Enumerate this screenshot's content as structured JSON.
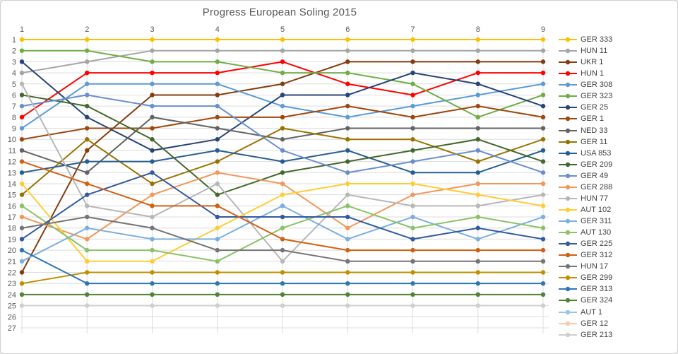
{
  "window": {
    "background": "#FFFFFF",
    "border_color": "#D0D0D0"
  },
  "chart_data": {
    "type": "line",
    "title": "Progress European Soling 2015",
    "title_color": "#595959",
    "x_ticks": [
      1,
      2,
      3,
      4,
      5,
      6,
      7,
      8,
      9
    ],
    "x_axis_position": "top",
    "y_ticks": [
      1,
      2,
      3,
      4,
      5,
      6,
      7,
      8,
      9,
      10,
      11,
      12,
      13,
      14,
      15,
      16,
      17,
      18,
      19,
      20,
      21,
      22,
      23,
      24,
      25,
      26,
      27
    ],
    "y_axis": {
      "min": 1,
      "max": 27,
      "reversed": true,
      "label_color": "#595959"
    },
    "grid": true,
    "gridline_color": "#DCDCDC",
    "legend_position": "right",
    "xlabel": "",
    "ylabel": "",
    "series": [
      {
        "name": "GER 333",
        "color": "#FFC000",
        "values": [
          1,
          1,
          1,
          1,
          1,
          1,
          1,
          1,
          1
        ]
      },
      {
        "name": "HUN 11",
        "color": "#A5A5A5",
        "values": [
          4,
          3,
          2,
          2,
          2,
          2,
          2,
          2,
          2
        ]
      },
      {
        "name": "UKR 1",
        "color": "#843C0C",
        "values": [
          22,
          11,
          6,
          6,
          5,
          3,
          3,
          3,
          3
        ]
      },
      {
        "name": "HUN 1",
        "color": "#FF0000",
        "values": [
          8,
          4,
          4,
          4,
          3,
          5,
          6,
          4,
          4
        ]
      },
      {
        "name": "GER 308",
        "color": "#5B9BD5",
        "values": [
          9,
          5,
          5,
          5,
          7,
          8,
          7,
          6,
          5
        ]
      },
      {
        "name": "GER 323",
        "color": "#70AD47",
        "values": [
          2,
          2,
          3,
          3,
          4,
          4,
          5,
          8,
          6
        ]
      },
      {
        "name": "GER 25",
        "color": "#264478",
        "values": [
          3,
          8,
          11,
          10,
          6,
          6,
          4,
          5,
          7
        ]
      },
      {
        "name": "GER 1",
        "color": "#9E480E",
        "values": [
          10,
          9,
          9,
          8,
          8,
          7,
          8,
          7,
          8
        ]
      },
      {
        "name": "NED 33",
        "color": "#636363",
        "values": [
          11,
          13,
          8,
          9,
          10,
          9,
          9,
          9,
          9
        ]
      },
      {
        "name": "GER 11",
        "color": "#997300",
        "values": [
          15,
          10,
          14,
          12,
          9,
          10,
          10,
          12,
          10
        ]
      },
      {
        "name": "USA 853",
        "color": "#255E91",
        "values": [
          13,
          12,
          12,
          11,
          12,
          11,
          13,
          13,
          11
        ]
      },
      {
        "name": "GER 209",
        "color": "#43682B",
        "values": [
          6,
          7,
          10,
          15,
          13,
          12,
          11,
          10,
          12
        ]
      },
      {
        "name": "GER 49",
        "color": "#698ED0",
        "values": [
          7,
          6,
          7,
          7,
          11,
          13,
          12,
          11,
          13
        ]
      },
      {
        "name": "GER 288",
        "color": "#F1975A",
        "values": [
          17,
          19,
          15,
          13,
          14,
          18,
          15,
          14,
          14
        ]
      },
      {
        "name": "HUN 77",
        "color": "#B7B7B7",
        "values": [
          5,
          16,
          17,
          14,
          21,
          15,
          16,
          16,
          15
        ]
      },
      {
        "name": "AUT 102",
        "color": "#FFCD33",
        "values": [
          14,
          21,
          21,
          18,
          15,
          14,
          14,
          15,
          16
        ]
      },
      {
        "name": "GER 311",
        "color": "#7CAFDD",
        "values": [
          21,
          18,
          19,
          19,
          16,
          19,
          17,
          19,
          17
        ]
      },
      {
        "name": "AUT 130",
        "color": "#8CC168",
        "values": [
          16,
          20,
          20,
          21,
          18,
          16,
          18,
          17,
          18
        ]
      },
      {
        "name": "GER 225",
        "color": "#335AA1",
        "values": [
          19,
          15,
          13,
          17,
          17,
          17,
          19,
          18,
          19
        ]
      },
      {
        "name": "GER 312",
        "color": "#D26012",
        "values": [
          12,
          14,
          16,
          16,
          19,
          20,
          20,
          20,
          20
        ]
      },
      {
        "name": "HUN 17",
        "color": "#757575",
        "values": [
          18,
          17,
          18,
          20,
          20,
          21,
          21,
          21,
          21
        ]
      },
      {
        "name": "GER 299",
        "color": "#BF9000",
        "values": [
          23,
          22,
          22,
          22,
          22,
          22,
          22,
          22,
          22
        ]
      },
      {
        "name": "GER 313",
        "color": "#2E75B6",
        "values": [
          20,
          23,
          23,
          23,
          23,
          23,
          23,
          23,
          23
        ]
      },
      {
        "name": "GER 324",
        "color": "#538135",
        "values": [
          24,
          24,
          24,
          24,
          24,
          24,
          24,
          24,
          24
        ]
      },
      {
        "name": "AUT 1",
        "color": "#9DC3E6",
        "values": [
          null,
          null,
          null,
          null,
          null,
          null,
          null,
          null,
          null
        ]
      },
      {
        "name": "GER 12",
        "color": "#F8CBAD",
        "values": [
          null,
          null,
          null,
          null,
          null,
          null,
          null,
          null,
          null
        ]
      },
      {
        "name": "GER 213",
        "color": "#D0CECE",
        "values": [
          25,
          25,
          25,
          25,
          25,
          25,
          25,
          25,
          25
        ]
      }
    ]
  }
}
